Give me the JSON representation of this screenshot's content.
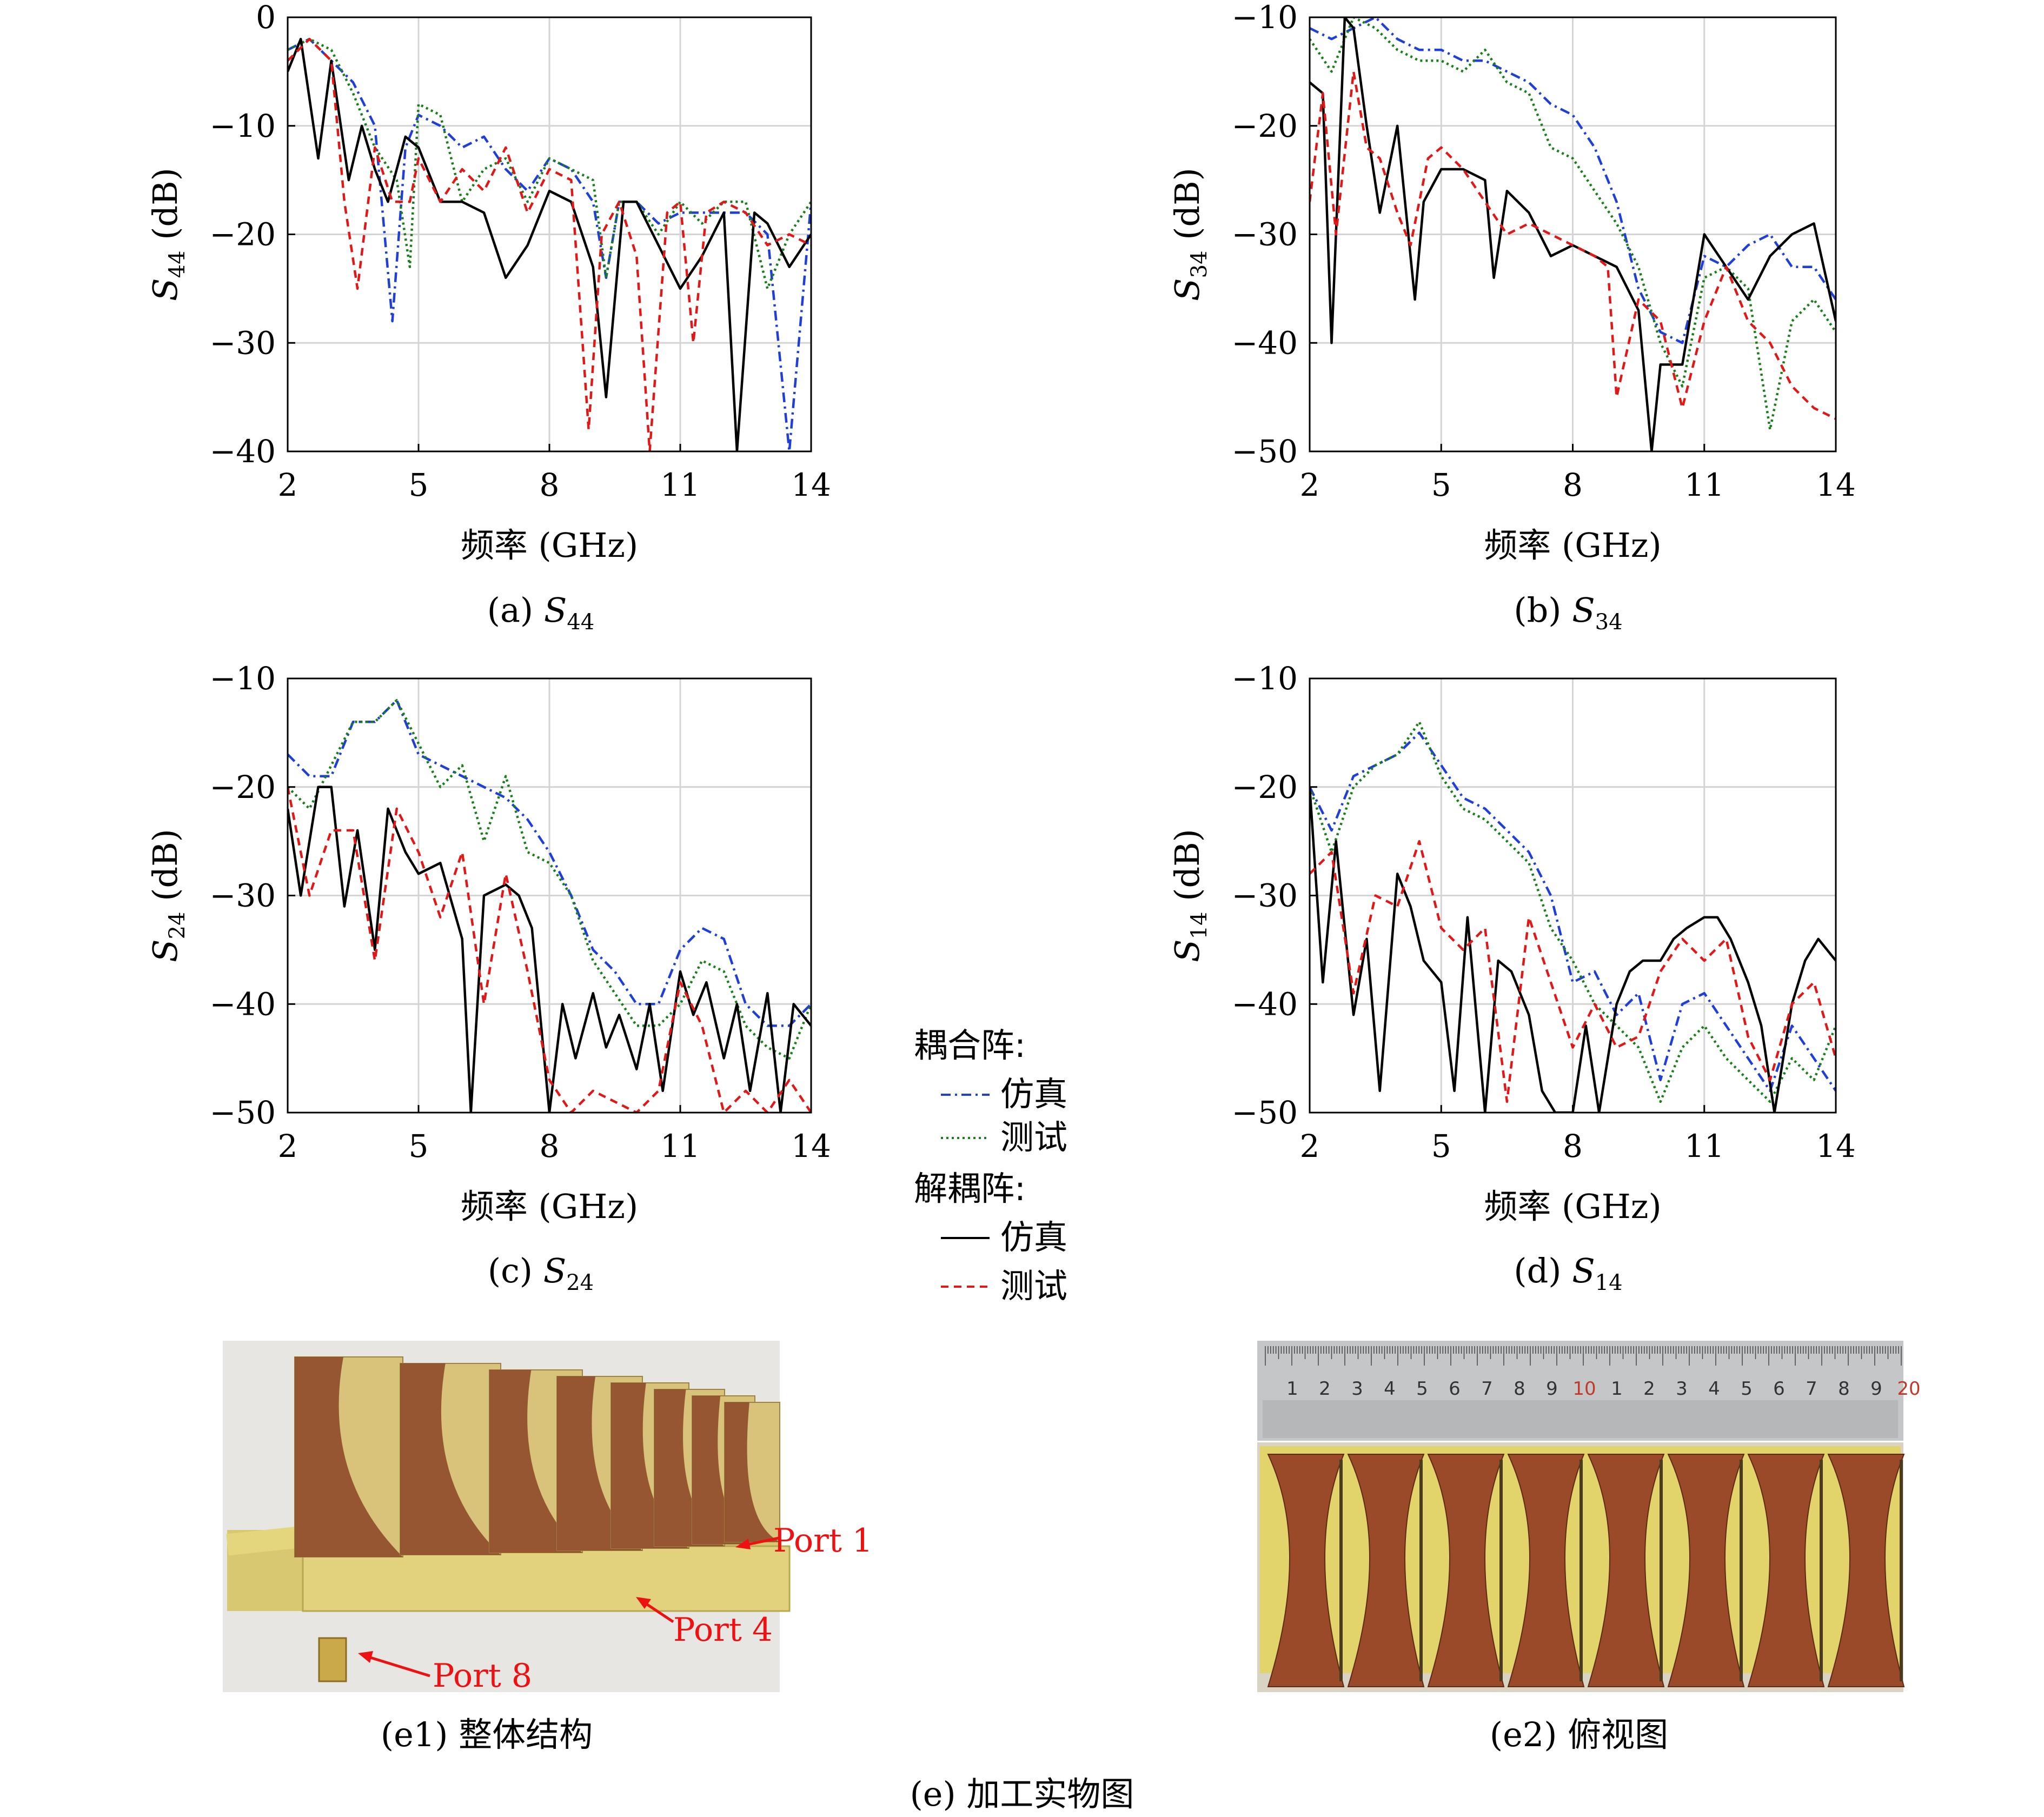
{
  "legend": {
    "group1_title": "耦合阵:",
    "group1_sim": "仿真",
    "group1_meas": "测试",
    "group2_title": "解耦阵:",
    "group2_sim": "仿真",
    "group2_meas": "测试"
  },
  "colors": {
    "coupled_sim": "#1f3fd8",
    "coupled_meas": "#1a7f1a",
    "decoupled_sim": "#000000",
    "decoupled_meas": "#e01818",
    "grid": "#d4d4d4"
  },
  "chart_data": [
    {
      "type": "line",
      "caption_prefix": "(a)",
      "ylabel_base": "S",
      "ylabel_sub": "44",
      "ylabel_unit": "(dB)",
      "xlabel": "频率 (GHz)",
      "xlim": [
        2,
        14
      ],
      "ylim": [
        -40,
        0
      ],
      "xticks": [
        2,
        5,
        8,
        11,
        14
      ],
      "yticks": [
        0,
        -10,
        -20,
        -30,
        -40
      ],
      "grid": true,
      "series": [
        {
          "key": "coupled_sim",
          "x": [
            2,
            2.5,
            3,
            3.5,
            4,
            4.4,
            4.7,
            5,
            5.5,
            6,
            6.5,
            7,
            7.5,
            8,
            8.5,
            9,
            9.3,
            9.6,
            10,
            10.5,
            11,
            11.5,
            12,
            12.5,
            13,
            13.5,
            14
          ],
          "values": [
            -3,
            -2,
            -4,
            -6,
            -10,
            -28,
            -12,
            -9,
            -10,
            -12,
            -11,
            -14,
            -16,
            -13,
            -14,
            -17,
            -24,
            -17,
            -17,
            -19,
            -18,
            -18,
            -18,
            -18,
            -20,
            -40,
            -17
          ]
        },
        {
          "key": "coupled_meas",
          "x": [
            2,
            2.5,
            3,
            3.5,
            4,
            4.5,
            4.8,
            5,
            5.5,
            6,
            6.5,
            7,
            7.5,
            8,
            8.5,
            9,
            9.3,
            9.6,
            10,
            10.5,
            11,
            11.5,
            12,
            12.5,
            13,
            13.5,
            14
          ],
          "values": [
            -3,
            -2,
            -3,
            -7,
            -12,
            -15,
            -23,
            -8,
            -9,
            -17,
            -14,
            -13,
            -17,
            -13,
            -14,
            -15,
            -24,
            -17,
            -17,
            -20,
            -17,
            -19,
            -17,
            -17,
            -25,
            -20,
            -17
          ]
        },
        {
          "key": "decoupled_sim",
          "x": [
            2,
            2.3,
            2.7,
            3,
            3.4,
            3.7,
            4,
            4.3,
            4.7,
            5,
            5.5,
            6,
            6.5,
            7,
            7.5,
            8,
            8.5,
            9,
            9.3,
            9.7,
            10,
            10.5,
            11,
            11.5,
            12,
            12.3,
            12.7,
            13,
            13.5,
            14
          ],
          "values": [
            -5,
            -2,
            -13,
            -4,
            -15,
            -10,
            -14,
            -17,
            -11,
            -12,
            -17,
            -17,
            -18,
            -24,
            -21,
            -16,
            -17,
            -23,
            -35,
            -17,
            -17,
            -21,
            -25,
            -22,
            -18,
            -40,
            -18,
            -19,
            -23,
            -20
          ]
        },
        {
          "key": "decoupled_meas",
          "x": [
            2,
            2.5,
            3,
            3.3,
            3.6,
            4,
            4.4,
            4.8,
            5,
            5.5,
            6,
            6.5,
            7,
            7.5,
            8,
            8.5,
            8.9,
            9.2,
            9.6,
            10,
            10.3,
            10.7,
            11,
            11.3,
            11.6,
            12,
            12.5,
            13,
            13.5,
            14
          ],
          "values": [
            -4,
            -2,
            -4,
            -17,
            -25,
            -12,
            -17,
            -17,
            -13,
            -17,
            -14,
            -16,
            -12,
            -18,
            -14,
            -15,
            -38,
            -20,
            -17,
            -22,
            -40,
            -18,
            -17,
            -30,
            -18,
            -17,
            -18,
            -21,
            -20,
            -21
          ]
        }
      ]
    },
    {
      "type": "line",
      "caption_prefix": "(b)",
      "ylabel_base": "S",
      "ylabel_sub": "34",
      "ylabel_unit": "(dB)",
      "xlabel": "频率 (GHz)",
      "xlim": [
        2,
        14
      ],
      "ylim": [
        -50,
        -10
      ],
      "xticks": [
        2,
        5,
        8,
        11,
        14
      ],
      "yticks": [
        -10,
        -20,
        -30,
        -40,
        -50
      ],
      "grid": true,
      "series": [
        {
          "key": "coupled_sim",
          "x": [
            2,
            2.5,
            3,
            3.5,
            4,
            4.5,
            5,
            5.5,
            6,
            6.5,
            7,
            7.5,
            8,
            8.5,
            9,
            9.5,
            10,
            10.5,
            11,
            11.5,
            12,
            12.5,
            13,
            13.5,
            14
          ],
          "values": [
            -11,
            -12,
            -11,
            -10,
            -12,
            -13,
            -13,
            -14,
            -14,
            -15,
            -16,
            -18,
            -19,
            -22,
            -27,
            -35,
            -39,
            -40,
            -32,
            -33,
            -31,
            -30,
            -33,
            -33,
            -36
          ]
        },
        {
          "key": "coupled_meas",
          "x": [
            2,
            2.5,
            3,
            3.5,
            4,
            4.5,
            5,
            5.5,
            6,
            6.5,
            7,
            7.5,
            8,
            8.5,
            9,
            9.5,
            10,
            10.5,
            11,
            11.5,
            12,
            12.5,
            13,
            13.5,
            14
          ],
          "values": [
            -12,
            -15,
            -10,
            -11,
            -13,
            -14,
            -14,
            -15,
            -13,
            -16,
            -17,
            -22,
            -23,
            -26,
            -29,
            -33,
            -40,
            -44,
            -34,
            -33,
            -35,
            -48,
            -38,
            -36,
            -39
          ]
        },
        {
          "key": "decoupled_sim",
          "x": [
            2,
            2.3,
            2.5,
            2.8,
            3,
            3.3,
            3.6,
            4,
            4.4,
            4.6,
            5,
            5.5,
            6,
            6.2,
            6.5,
            7,
            7.5,
            8,
            8.5,
            9,
            9.5,
            9.8,
            10,
            10.5,
            11,
            11.5,
            12,
            12.5,
            13,
            13.5,
            14
          ],
          "values": [
            -16,
            -17,
            -40,
            -10,
            -11,
            -20,
            -28,
            -20,
            -36,
            -27,
            -24,
            -24,
            -25,
            -34,
            -26,
            -28,
            -32,
            -31,
            -32,
            -33,
            -37,
            -50,
            -42,
            -42,
            -30,
            -33,
            -36,
            -32,
            -30,
            -29,
            -38
          ]
        },
        {
          "key": "decoupled_meas",
          "x": [
            2,
            2.3,
            2.6,
            3,
            3.3,
            3.6,
            4,
            4.3,
            4.7,
            5,
            5.5,
            6,
            6.5,
            7,
            7.5,
            8,
            8.5,
            8.8,
            9,
            9.5,
            10,
            10.5,
            11,
            11.5,
            12,
            12.5,
            13,
            13.5,
            14
          ],
          "values": [
            -27,
            -17,
            -30,
            -15,
            -22,
            -23,
            -28,
            -31,
            -23,
            -22,
            -24,
            -27,
            -30,
            -29,
            -30,
            -31,
            -32,
            -33,
            -45,
            -36,
            -38,
            -46,
            -38,
            -33,
            -38,
            -40,
            -44,
            -46,
            -47
          ]
        }
      ]
    },
    {
      "type": "line",
      "caption_prefix": "(c)",
      "ylabel_base": "S",
      "ylabel_sub": "24",
      "ylabel_unit": "(dB)",
      "xlabel": "频率 (GHz)",
      "xlim": [
        2,
        14
      ],
      "ylim": [
        -50,
        -10
      ],
      "xticks": [
        2,
        5,
        8,
        11,
        14
      ],
      "yticks": [
        -10,
        -20,
        -30,
        -40,
        -50
      ],
      "grid": true,
      "series": [
        {
          "key": "coupled_sim",
          "x": [
            2,
            2.5,
            3,
            3.5,
            4,
            4.5,
            5,
            5.5,
            6,
            6.5,
            7,
            7.5,
            8,
            8.5,
            9,
            9.5,
            10,
            10.5,
            11,
            11.5,
            12,
            12.5,
            13,
            13.5,
            14
          ],
          "values": [
            -17,
            -19,
            -19,
            -14,
            -14,
            -12,
            -17,
            -18,
            -19,
            -20,
            -21,
            -23,
            -26,
            -30,
            -35,
            -37,
            -40,
            -40,
            -35,
            -33,
            -34,
            -40,
            -42,
            -42,
            -40
          ]
        },
        {
          "key": "coupled_meas",
          "x": [
            2,
            2.5,
            3,
            3.5,
            4,
            4.5,
            5,
            5.5,
            6,
            6.5,
            7,
            7.5,
            8,
            8.5,
            9,
            9.5,
            10,
            10.5,
            11,
            11.5,
            12,
            12.5,
            13,
            13.5,
            14
          ],
          "values": [
            -20,
            -22,
            -18,
            -14,
            -14,
            -12,
            -16,
            -20,
            -18,
            -25,
            -19,
            -26,
            -27,
            -30,
            -36,
            -39,
            -42,
            -42,
            -40,
            -36,
            -37,
            -42,
            -44,
            -45,
            -40
          ]
        },
        {
          "key": "decoupled_sim",
          "x": [
            2,
            2.3,
            2.7,
            3,
            3.3,
            3.6,
            4,
            4.3,
            4.7,
            5,
            5.5,
            6,
            6.2,
            6.5,
            7,
            7.3,
            7.6,
            8,
            8.3,
            8.6,
            9,
            9.3,
            9.6,
            10,
            10.3,
            10.6,
            11,
            11.3,
            11.6,
            12,
            12.3,
            12.6,
            13,
            13.3,
            13.6,
            14
          ],
          "values": [
            -22,
            -30,
            -20,
            -20,
            -31,
            -24,
            -35,
            -22,
            -26,
            -28,
            -27,
            -34,
            -50,
            -30,
            -29,
            -30,
            -33,
            -50,
            -40,
            -45,
            -39,
            -44,
            -41,
            -46,
            -40,
            -48,
            -37,
            -41,
            -38,
            -45,
            -40,
            -48,
            -39,
            -50,
            -40,
            -42
          ]
        },
        {
          "key": "decoupled_meas",
          "x": [
            2,
            2.5,
            3,
            3.5,
            4,
            4.5,
            5,
            5.5,
            6,
            6.5,
            7,
            7.5,
            8,
            8.5,
            9,
            9.5,
            10,
            10.5,
            11,
            11.5,
            12,
            12.5,
            13,
            13.5,
            14
          ],
          "values": [
            -20,
            -30,
            -24,
            -24,
            -36,
            -22,
            -26,
            -32,
            -26,
            -40,
            -28,
            -37,
            -47,
            -50,
            -48,
            -49,
            -50,
            -48,
            -38,
            -42,
            -50,
            -48,
            -50,
            -47,
            -50
          ]
        }
      ]
    },
    {
      "type": "line",
      "caption_prefix": "(d)",
      "ylabel_base": "S",
      "ylabel_sub": "14",
      "ylabel_unit": "(dB)",
      "xlabel": "频率 (GHz)",
      "xlim": [
        2,
        14
      ],
      "ylim": [
        -50,
        -10
      ],
      "xticks": [
        2,
        5,
        8,
        11,
        14
      ],
      "yticks": [
        -10,
        -20,
        -30,
        -40,
        -50
      ],
      "grid": true,
      "series": [
        {
          "key": "coupled_sim",
          "x": [
            2,
            2.5,
            3,
            3.5,
            4,
            4.5,
            5,
            5.5,
            6,
            6.5,
            7,
            7.5,
            8,
            8.5,
            9,
            9.5,
            10,
            10.5,
            11,
            11.5,
            12,
            12.5,
            13,
            13.5,
            14
          ],
          "values": [
            -20,
            -24,
            -19,
            -18,
            -17,
            -15,
            -18,
            -21,
            -22,
            -24,
            -26,
            -30,
            -38,
            -37,
            -41,
            -39,
            -47,
            -40,
            -39,
            -42,
            -45,
            -48,
            -42,
            -45,
            -48
          ]
        },
        {
          "key": "coupled_meas",
          "x": [
            2,
            2.5,
            3,
            3.5,
            4,
            4.5,
            5,
            5.5,
            6,
            6.5,
            7,
            7.5,
            8,
            8.5,
            9,
            9.5,
            10,
            10.5,
            11,
            11.5,
            12,
            12.5,
            13,
            13.5,
            14
          ],
          "values": [
            -20,
            -26,
            -20,
            -18,
            -17,
            -14,
            -19,
            -22,
            -23,
            -25,
            -27,
            -33,
            -36,
            -40,
            -42,
            -44,
            -49,
            -44,
            -42,
            -45,
            -47,
            -49,
            -45,
            -47,
            -42
          ]
        },
        {
          "key": "decoupled_sim",
          "x": [
            2,
            2.3,
            2.6,
            3,
            3.3,
            3.6,
            4,
            4.3,
            4.6,
            5,
            5.3,
            5.6,
            6,
            6.3,
            6.6,
            7,
            7.3,
            7.6,
            8,
            8.3,
            8.6,
            9,
            9.3,
            9.6,
            10,
            10.3,
            10.6,
            11,
            11.3,
            11.6,
            12,
            12.3,
            12.6,
            13,
            13.3,
            13.6,
            14
          ],
          "values": [
            -20,
            -38,
            -25,
            -41,
            -34,
            -48,
            -28,
            -31,
            -36,
            -38,
            -48,
            -32,
            -50,
            -36,
            -37,
            -41,
            -48,
            -50,
            -50,
            -42,
            -50,
            -40,
            -37,
            -36,
            -36,
            -34,
            -33,
            -32,
            -32,
            -34,
            -38,
            -42,
            -50,
            -40,
            -36,
            -34,
            -36
          ]
        },
        {
          "key": "decoupled_meas",
          "x": [
            2,
            2.5,
            3,
            3.5,
            4,
            4.5,
            5,
            5.5,
            6,
            6.5,
            7,
            7.5,
            8,
            8.5,
            9,
            9.5,
            10,
            10.5,
            11,
            11.5,
            12,
            12.5,
            13,
            13.5,
            14
          ],
          "values": [
            -28,
            -26,
            -39,
            -30,
            -31,
            -25,
            -33,
            -35,
            -33,
            -49,
            -32,
            -38,
            -44,
            -40,
            -44,
            -43,
            -37,
            -34,
            -36,
            -34,
            -43,
            -47,
            -40,
            -38,
            -45
          ]
        }
      ]
    }
  ],
  "photos": {
    "e1_port1": "Port 1",
    "e1_port4": "Port 4",
    "e1_port8": "Port 8",
    "ruler_numbers": [
      "1",
      "2",
      "3",
      "4",
      "5",
      "6",
      "7",
      "8",
      "9",
      "10",
      "1",
      "2",
      "3",
      "4",
      "5",
      "6",
      "7",
      "8",
      "9",
      "20"
    ],
    "e1_caption": "(e1) 整体结构",
    "e2_caption": "(e2) 俯视图",
    "e_caption": "(e) 加工实物图"
  }
}
